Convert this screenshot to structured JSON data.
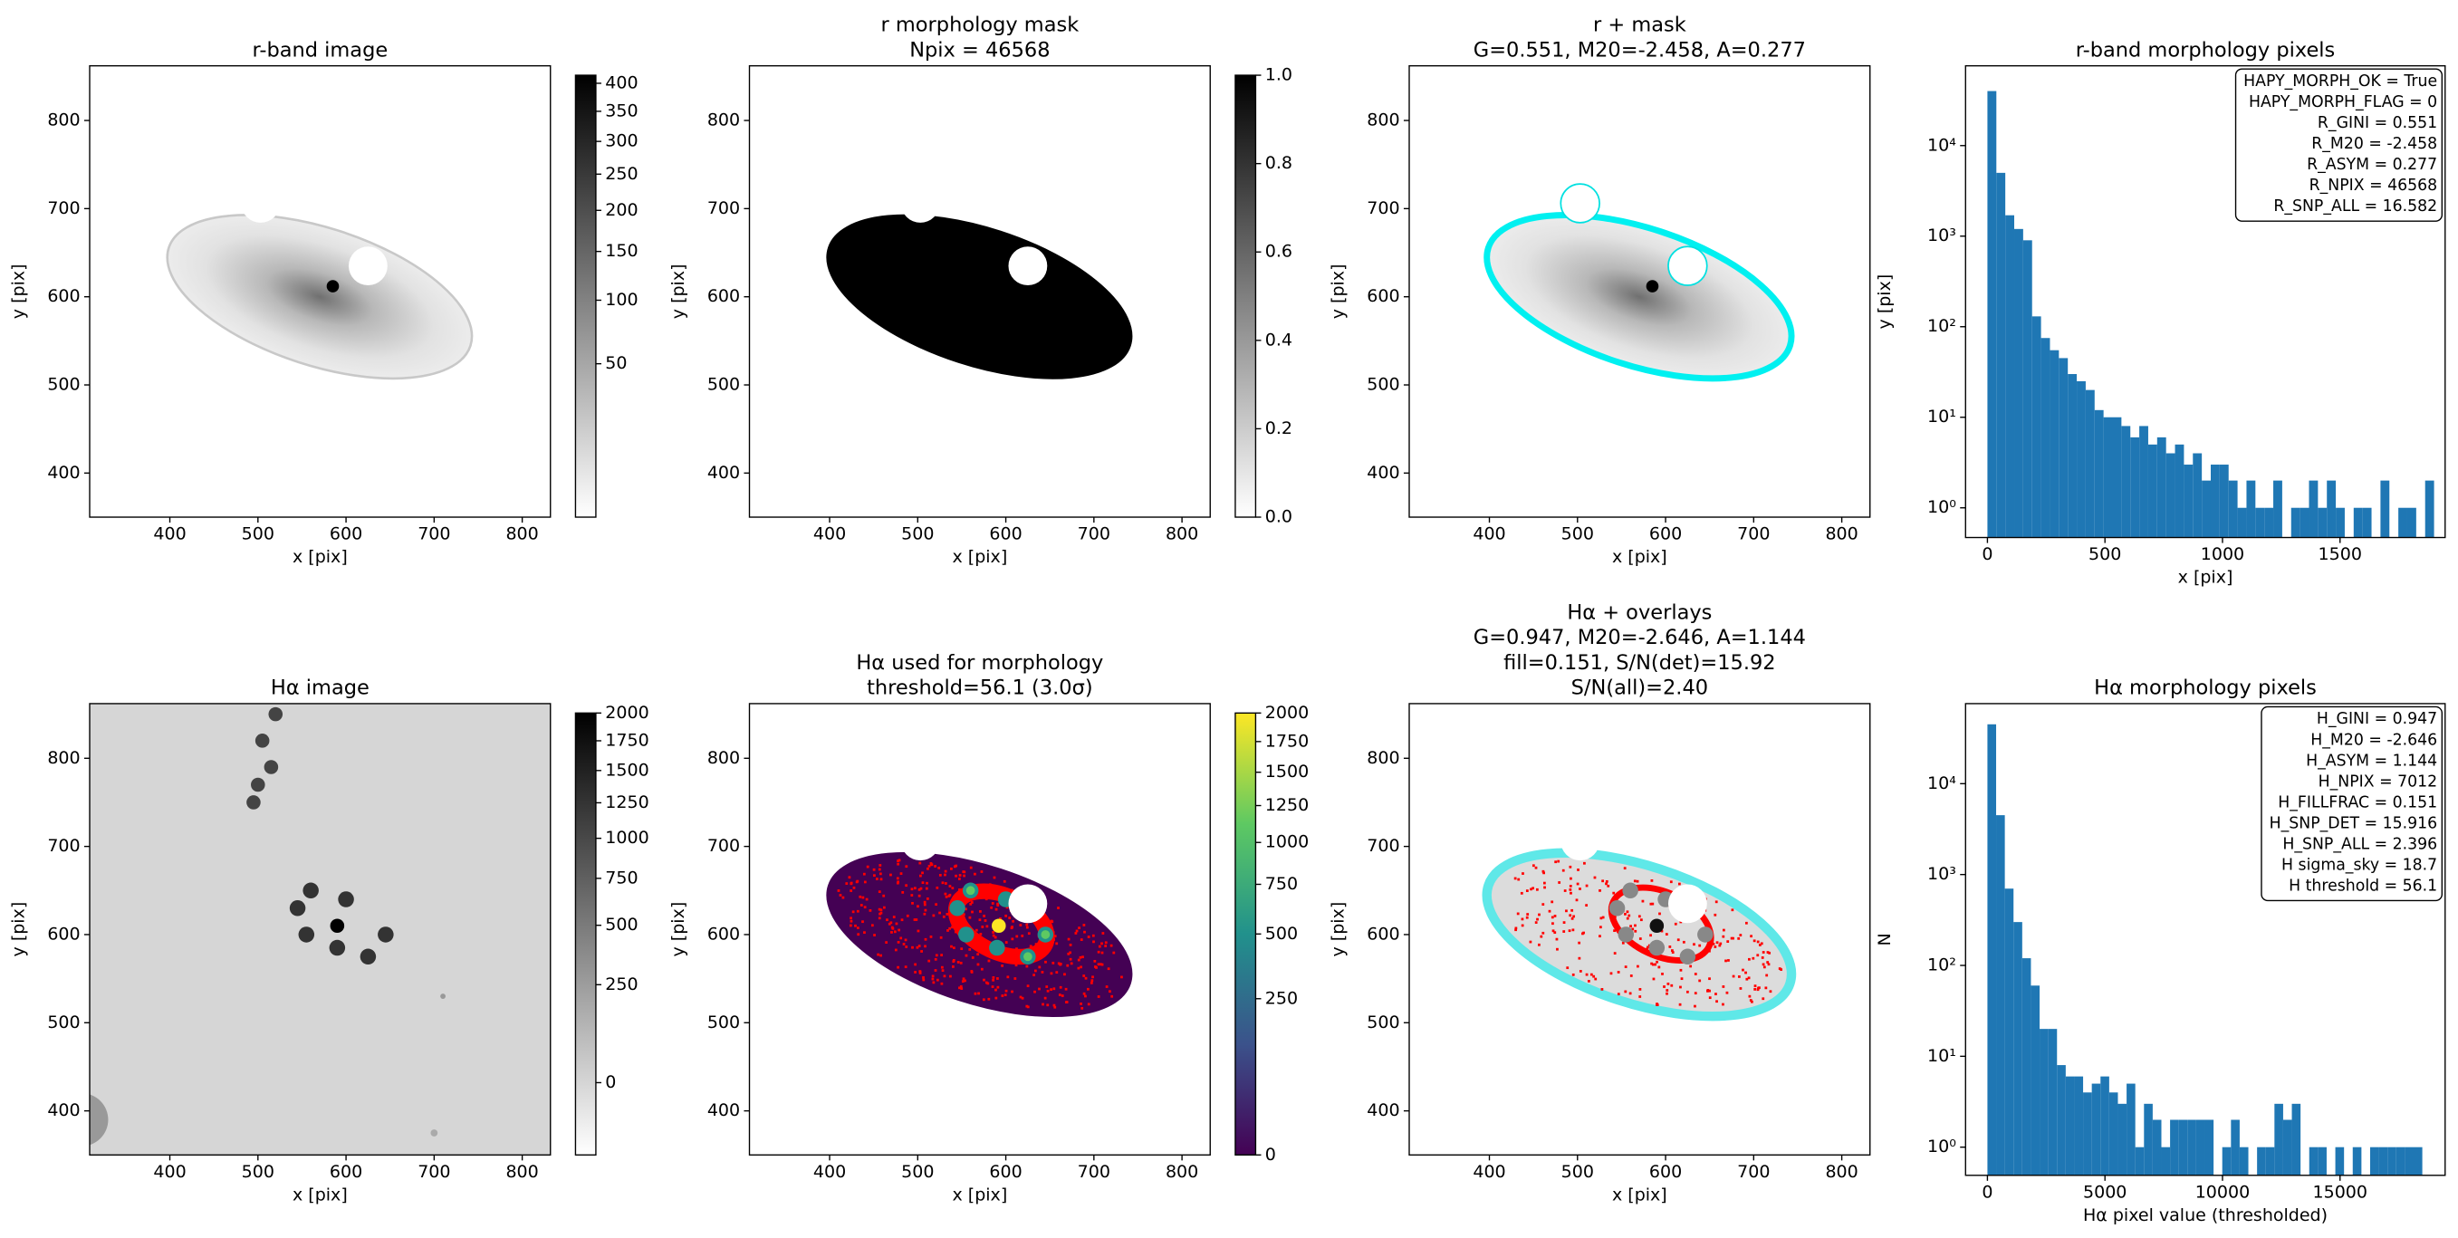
{
  "chart_data": [
    {
      "type": "image",
      "title": [
        "r-band image"
      ],
      "xlabel": "x [pix]",
      "ylabel": "y [pix]",
      "cmap": "gray_r",
      "xlim": [
        309,
        832
      ],
      "ylim": [
        350,
        862
      ],
      "xticks": [
        400,
        500,
        600,
        700,
        800
      ],
      "yticks": [
        400,
        500,
        600,
        700,
        800
      ],
      "colorbar": {
        "scale": "sqrt",
        "lim": [
          0,
          415
        ],
        "ticks": [
          50,
          100,
          150,
          200,
          250,
          300,
          350,
          400
        ]
      }
    },
    {
      "type": "image",
      "title": [
        "r morphology mask",
        "Npix = 46568"
      ],
      "xlabel": "x [pix]",
      "ylabel": "y [pix]",
      "cmap": "gray_r",
      "xlim": [
        309,
        832
      ],
      "ylim": [
        350,
        862
      ],
      "xticks": [
        400,
        500,
        600,
        700,
        800
      ],
      "yticks": [
        400,
        500,
        600,
        700,
        800
      ],
      "colorbar": {
        "scale": "linear",
        "lim": [
          0,
          1
        ],
        "ticks": [
          {
            "value": 0,
            "label": "0.0"
          },
          0.2,
          0.4,
          0.6,
          0.8,
          {
            "value": 1,
            "label": "1.0"
          }
        ]
      }
    },
    {
      "type": "image",
      "title": [
        "r + mask",
        "G=0.551, M20=-2.458, A=0.277"
      ],
      "xlabel": "x [pix]",
      "ylabel": "y [pix]",
      "cmap": "gray_r",
      "xlim": [
        309,
        832
      ],
      "ylim": [
        350,
        862
      ],
      "xticks": [
        400,
        500,
        600,
        700,
        800
      ],
      "yticks": [
        400,
        500,
        600,
        700,
        800
      ]
    },
    {
      "type": "histogram",
      "title": [
        "r-band morphology pixels"
      ],
      "xlabel": "x [pix]",
      "ylabel": "y [pix]",
      "color": "#1f77b4",
      "yscale": "log",
      "xlim": [
        -93,
        1947
      ],
      "ylim": [
        0.47,
        76000
      ],
      "xticks": [
        0,
        500,
        1000,
        1500
      ],
      "yticks": [
        {
          "value": 1,
          "label": "10⁰"
        },
        {
          "value": 10,
          "label": "10¹"
        },
        {
          "value": 100,
          "label": "10²"
        },
        {
          "value": 1000,
          "label": "10³"
        },
        {
          "value": 10000,
          "label": "10⁴"
        }
      ],
      "bins": [
        0,
        38,
        76,
        114,
        152,
        190,
        228,
        266,
        304,
        342,
        380,
        418,
        456,
        494,
        532,
        570,
        608,
        646,
        684,
        722,
        760,
        798,
        836,
        874,
        912,
        950,
        988,
        1026,
        1064,
        1102,
        1140,
        1178,
        1216,
        1254,
        1292,
        1330,
        1368,
        1406,
        1444,
        1482,
        1520,
        1558,
        1596,
        1634,
        1672,
        1710,
        1748,
        1786,
        1824,
        1862,
        1900
      ],
      "values": [
        40000,
        5000,
        1700,
        1200,
        900,
        130,
        75,
        55,
        45,
        30,
        25,
        20,
        12,
        10,
        10,
        8,
        6,
        8,
        5,
        6,
        4,
        5,
        3,
        4,
        2,
        3,
        3,
        2,
        1,
        2,
        1,
        1,
        2,
        0,
        1,
        1,
        2,
        1,
        2,
        1,
        0,
        1,
        1,
        0,
        2,
        0,
        1,
        1,
        0,
        2
      ],
      "annotation": [
        "HAPY_MORPH_OK = True",
        "HAPY_MORPH_FLAG = 0",
        "R_GINI = 0.551",
        "R_M20 = -2.458",
        "R_ASYM = 0.277",
        "R_NPIX = 46568",
        "R_SNP_ALL = 16.582"
      ]
    },
    {
      "type": "image",
      "title": [
        "Hα image"
      ],
      "xlabel": "x [pix]",
      "ylabel": "y [pix]",
      "cmap": "gray_r",
      "xlim": [
        309,
        832
      ],
      "ylim": [
        350,
        862
      ],
      "xticks": [
        400,
        500,
        600,
        700,
        800
      ],
      "yticks": [
        400,
        500,
        600,
        700,
        800
      ],
      "colorbar": {
        "scale": "sqrt",
        "lim": [
          -55,
          2000
        ],
        "ticks": [
          0,
          250,
          500,
          750,
          1000,
          1250,
          1500,
          1750,
          2000
        ]
      }
    },
    {
      "type": "image",
      "title": [
        "Hα used for morphology",
        "threshold=56.1 (3.0σ)"
      ],
      "xlabel": "x [pix]",
      "ylabel": "y [pix]",
      "cmap": "viridis",
      "xlim": [
        309,
        832
      ],
      "ylim": [
        350,
        862
      ],
      "xticks": [
        400,
        500,
        600,
        700,
        800
      ],
      "yticks": [
        400,
        500,
        600,
        700,
        800
      ],
      "colorbar": {
        "scale": "sqrt",
        "lim": [
          0,
          2000
        ],
        "ticks": [
          0,
          250,
          500,
          750,
          1000,
          1250,
          1500,
          1750,
          2000
        ]
      }
    },
    {
      "type": "image",
      "title": [
        "Hα + overlays",
        "G=0.947, M20=-2.646, A=1.144",
        "fill=0.151, S/N(det)=15.92",
        "S/N(all)=2.40"
      ],
      "xlabel": "x [pix]",
      "ylabel": "y [pix]",
      "cmap": "gray_r",
      "xlim": [
        309,
        832
      ],
      "ylim": [
        350,
        862
      ],
      "xticks": [
        400,
        500,
        600,
        700,
        800
      ],
      "yticks": [
        400,
        500,
        600,
        700,
        800
      ]
    },
    {
      "type": "histogram",
      "title": [
        "Hα morphology pixels"
      ],
      "xlabel": "Hα pixel value (thresholded)",
      "ylabel": "N",
      "color": "#1f77b4",
      "yscale": "log",
      "xlim": [
        -930,
        19470
      ],
      "ylim": [
        0.49,
        76000
      ],
      "xticks": [
        0,
        5000,
        10000,
        15000
      ],
      "yticks": [
        {
          "value": 1,
          "label": "10⁰"
        },
        {
          "value": 10,
          "label": "10¹"
        },
        {
          "value": 100,
          "label": "10²"
        },
        {
          "value": 1000,
          "label": "10³"
        },
        {
          "value": 10000,
          "label": "10⁴"
        }
      ],
      "bins": [
        0,
        370,
        740,
        1110,
        1480,
        1850,
        2220,
        2590,
        2960,
        3330,
        3700,
        4070,
        4440,
        4810,
        5180,
        5550,
        5920,
        6290,
        6660,
        7030,
        7400,
        7770,
        8140,
        8510,
        8880,
        9250,
        9620,
        9990,
        10360,
        10730,
        11100,
        11470,
        11840,
        12210,
        12580,
        12950,
        13320,
        13690,
        14060,
        14430,
        14800,
        15170,
        15540,
        15910,
        16280,
        16650,
        17020,
        17390,
        17760,
        18130,
        18500
      ],
      "values": [
        45000,
        4500,
        700,
        300,
        120,
        60,
        20,
        20,
        8,
        6,
        6,
        4,
        5,
        6,
        4,
        3,
        5,
        1,
        3,
        2,
        1,
        2,
        2,
        2,
        2,
        2,
        0,
        1,
        2,
        1,
        0,
        1,
        1,
        3,
        2,
        3,
        0,
        1,
        1,
        0,
        1,
        0,
        1,
        0,
        1,
        1,
        1,
        1,
        1,
        1
      ],
      "annotation": [
        "H_GINI = 0.947",
        "H_M20 = -2.646",
        "H_ASYM = 1.144",
        "H_NPIX = 7012",
        "H_FILLFRAC = 0.151",
        "H_SNP_DET = 15.916",
        "H_SNP_ALL = 2.396",
        "H sigma_sky = 18.7",
        "H threshold = 56.1"
      ]
    }
  ]
}
